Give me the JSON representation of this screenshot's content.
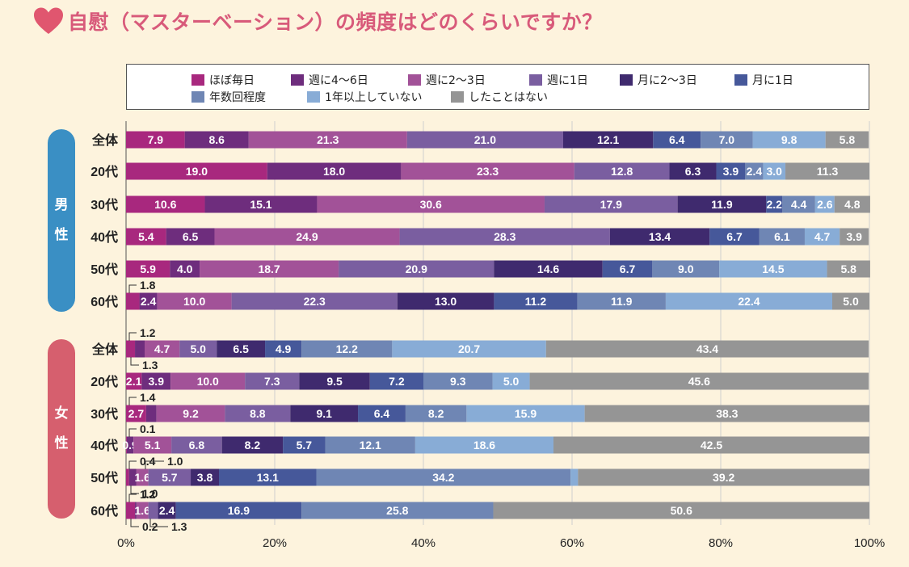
{
  "title": "自慰（マスターベーション）の頻度はどのくらいですか？",
  "colors": {
    "background": "#fdf3dd",
    "title": "#d85a7a",
    "male": "#3a8fc4",
    "female": "#d65f6e"
  },
  "groups": {
    "male": [
      "男",
      "性"
    ],
    "female": [
      "女",
      "性"
    ]
  },
  "chart_data": {
    "type": "bar",
    "orientation": "horizontal-stacked-100",
    "xlabel": "",
    "ylabel": "",
    "xlim": [
      0,
      100
    ],
    "x_ticks": [
      "0%",
      "20%",
      "40%",
      "60%",
      "80%",
      "100%"
    ],
    "grid": true,
    "legend_position": "top",
    "categories": [
      {
        "name": "ほぼ毎日",
        "color": "#a8287e"
      },
      {
        "name": "週に4〜6日",
        "color": "#6e2d7d"
      },
      {
        "name": "週に2〜3日",
        "color": "#a25298"
      },
      {
        "name": "週に1日",
        "color": "#7a5ea0"
      },
      {
        "name": "月に2〜3日",
        "color": "#3f2a6e"
      },
      {
        "name": "月に1日",
        "color": "#46589a"
      },
      {
        "name": "年数回程度",
        "color": "#6f86b4"
      },
      {
        "name": "1年以上していない",
        "color": "#88acd6"
      },
      {
        "name": "したことはない",
        "color": "#959595"
      }
    ],
    "rows": [
      {
        "group": "male",
        "label": "全体",
        "values": [
          7.9,
          8.6,
          21.3,
          21.0,
          12.1,
          6.4,
          7.0,
          9.8,
          5.8
        ],
        "labels": [
          "7.9",
          "8.6",
          "21.3",
          "21.0",
          "12.1",
          "6.4",
          "7.0",
          "9.8",
          "5.8"
        ]
      },
      {
        "group": "male",
        "label": "20代",
        "values": [
          19.0,
          18.0,
          23.3,
          12.8,
          6.3,
          3.9,
          2.4,
          3.0,
          11.3
        ],
        "labels": [
          "19.0",
          "18.0",
          "23.3",
          "12.8",
          "6.3",
          "3.9",
          "2.4",
          "3.0",
          "11.3"
        ]
      },
      {
        "group": "male",
        "label": "30代",
        "values": [
          10.6,
          15.1,
          30.6,
          17.9,
          11.9,
          2.2,
          4.4,
          2.6,
          4.8
        ],
        "labels": [
          "10.6",
          "15.1",
          "30.6",
          "17.9",
          "11.9",
          "2.2",
          "4.4",
          "2.6",
          "4.8"
        ]
      },
      {
        "group": "male",
        "label": "40代",
        "values": [
          5.4,
          6.5,
          24.9,
          28.3,
          13.4,
          6.7,
          6.1,
          4.7,
          3.9
        ],
        "labels": [
          "5.4",
          "6.5",
          "24.9",
          "28.3",
          "13.4",
          "6.7",
          "6.1",
          "4.7",
          "3.9"
        ]
      },
      {
        "group": "male",
        "label": "50代",
        "values": [
          5.9,
          4.0,
          18.7,
          20.9,
          14.6,
          6.7,
          9.0,
          14.5,
          5.8
        ],
        "labels": [
          "5.9",
          "4.0",
          "18.7",
          "20.9",
          "14.6",
          "6.7",
          "9.0",
          "14.5",
          "5.8"
        ]
      },
      {
        "group": "male",
        "label": "60代",
        "values": [
          1.8,
          2.4,
          10.0,
          22.3,
          13.0,
          11.2,
          11.9,
          22.4,
          5.0
        ],
        "labels": [
          "",
          "2.4",
          "10.0",
          "22.3",
          "13.0",
          "11.2",
          "11.9",
          "22.4",
          "5.0"
        ]
      },
      {
        "group": "female",
        "label": "全体",
        "values": [
          1.2,
          1.3,
          4.7,
          5.0,
          6.5,
          4.9,
          12.2,
          20.7,
          43.4
        ],
        "labels": [
          "",
          "",
          "4.7",
          "5.0",
          "6.5",
          "4.9",
          "12.2",
          "20.7",
          "43.4"
        ]
      },
      {
        "group": "female",
        "label": "20代",
        "values": [
          2.1,
          3.9,
          10.0,
          7.3,
          9.5,
          7.2,
          9.3,
          5.0,
          45.6
        ],
        "labels": [
          "2.1",
          "3.9",
          "10.0",
          "7.3",
          "9.5",
          "7.2",
          "9.3",
          "5.0",
          "45.6"
        ]
      },
      {
        "group": "female",
        "label": "30代",
        "values": [
          2.7,
          1.4,
          9.2,
          8.8,
          9.1,
          6.4,
          8.2,
          15.9,
          38.3
        ],
        "labels": [
          "2.7",
          "",
          "9.2",
          "8.8",
          "9.1",
          "6.4",
          "8.2",
          "15.9",
          "38.3"
        ]
      },
      {
        "group": "female",
        "label": "40代",
        "values": [
          0.1,
          0.9,
          5.1,
          6.8,
          8.2,
          5.7,
          12.1,
          18.6,
          42.5
        ],
        "labels": [
          "",
          "0.9",
          "5.1",
          "6.8",
          "8.2",
          "5.7",
          "12.1",
          "18.6",
          "42.5"
        ]
      },
      {
        "group": "female",
        "label": "50代",
        "values": [
          0.4,
          1.0,
          1.6,
          5.7,
          3.8,
          13.1,
          34.2,
          1.0,
          39.2
        ],
        "labels": [
          "",
          "",
          "1.6",
          "5.7",
          "3.8",
          "13.1",
          "34.2",
          "",
          "39.2"
        ]
      },
      {
        "group": "female",
        "label": "60代",
        "values": [
          1.2,
          0.2,
          1.6,
          1.3,
          2.4,
          16.9,
          25.8,
          0,
          50.6
        ],
        "labels": [
          "",
          "",
          "1.6",
          "",
          "2.4",
          "16.9",
          "25.8",
          "",
          "50.6"
        ]
      }
    ],
    "callouts": [
      {
        "row": 5,
        "text": "1.8",
        "pos": "above"
      },
      {
        "row": 6,
        "text": "1.2",
        "pos": "above"
      },
      {
        "row": 6,
        "text": "1.3",
        "pos": "below"
      },
      {
        "row": 8,
        "text": "1.4",
        "pos": "above"
      },
      {
        "row": 9,
        "text": "0.1",
        "pos": "above"
      },
      {
        "row": 10,
        "text": "0.4",
        "pos": "above"
      },
      {
        "row": 10,
        "text": "1.0",
        "pos": "above"
      },
      {
        "row": 10,
        "text": "1.0",
        "pos": "below"
      },
      {
        "row": 11,
        "text": "1.2",
        "pos": "above"
      },
      {
        "row": 11,
        "text": "0.2",
        "pos": "below"
      },
      {
        "row": 11,
        "text": "1.3",
        "pos": "below"
      }
    ]
  }
}
